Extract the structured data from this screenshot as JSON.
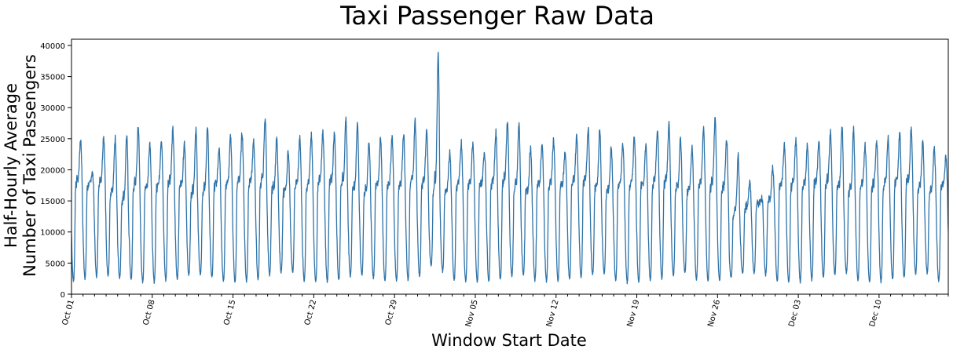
{
  "chart_data": {
    "type": "line",
    "title": "Taxi Passenger Raw Data",
    "xlabel": "Window Start Date",
    "ylabel_line1": "Half-Hourly Average",
    "ylabel_line2": "Number of Taxi Passengers",
    "x_range": [
      "2014-10-01",
      "2014-12-16"
    ],
    "ylim": [
      0,
      41000
    ],
    "x_tick_labels": [
      "Oct 01",
      "Oct 08",
      "Oct 15",
      "Oct 22",
      "Oct 29",
      "Nov 05",
      "Nov 12",
      "Nov 19",
      "Nov 26",
      "Dec 03",
      "Dec 10"
    ],
    "y_ticks": [
      0,
      5000,
      10000,
      15000,
      20000,
      25000,
      30000,
      35000,
      40000
    ],
    "series_color": "#2f73a8",
    "grid": false,
    "series": [
      {
        "x": [
          "2014-10-01",
          "2014-10-02",
          "2014-10-03",
          "2014-10-04",
          "2014-10-05",
          "2014-10-06",
          "2014-10-07",
          "2014-10-08",
          "2014-10-09",
          "2014-10-10",
          "2014-10-11",
          "2014-10-12",
          "2014-10-13",
          "2014-10-14",
          "2014-10-15",
          "2014-10-16",
          "2014-10-17",
          "2014-10-18",
          "2014-10-19",
          "2014-10-20",
          "2014-10-21",
          "2014-10-22",
          "2014-10-23",
          "2014-10-24",
          "2014-10-25",
          "2014-10-26",
          "2014-10-27",
          "2014-10-28",
          "2014-10-29",
          "2014-10-30",
          "2014-10-31",
          "2014-11-01",
          "2014-11-02",
          "2014-11-03",
          "2014-11-04",
          "2014-11-05",
          "2014-11-06",
          "2014-11-07",
          "2014-11-08",
          "2014-11-09",
          "2014-11-10",
          "2014-11-11",
          "2014-11-12",
          "2014-11-13",
          "2014-11-14",
          "2014-11-15",
          "2014-11-16",
          "2014-11-17",
          "2014-11-18",
          "2014-11-19",
          "2014-11-20",
          "2014-11-21",
          "2014-11-22",
          "2014-11-23",
          "2014-11-24",
          "2014-11-25",
          "2014-11-26",
          "2014-11-27",
          "2014-11-28",
          "2014-11-29",
          "2014-11-30",
          "2014-12-01",
          "2014-12-02",
          "2014-12-03",
          "2014-12-04",
          "2014-12-05",
          "2014-12-06",
          "2014-12-07",
          "2014-12-08",
          "2014-12-09",
          "2014-12-10",
          "2014-12-11",
          "2014-12-12",
          "2014-12-13",
          "2014-12-14",
          "2014-12-15",
          "2014-12-16"
        ],
        "min": [
          2000,
          2500,
          2800,
          3000,
          2600,
          2300,
          1800,
          1900,
          2200,
          2400,
          3000,
          3200,
          2600,
          2000,
          1800,
          2000,
          2300,
          3000,
          3500,
          3400,
          2100,
          1900,
          2000,
          2200,
          2900,
          3000,
          2500,
          2000,
          2100,
          2200,
          2800,
          4500,
          3600,
          2100,
          2000,
          1900,
          2000,
          2300,
          2800,
          3100,
          2200,
          2000,
          2000,
          2300,
          2600,
          3100,
          3300,
          2100,
          1800,
          1900,
          2200,
          2400,
          3000,
          3400,
          2300,
          2000,
          2100,
          2600,
          3200,
          3300,
          3000,
          2000,
          1800,
          1900,
          2200,
          2600,
          3100,
          3300,
          2100,
          1800,
          1900,
          2300,
          2600,
          3100,
          3400,
          2000,
          3000
        ],
        "max": [
          25000,
          19500,
          25500,
          25000,
          26000,
          27000,
          24500,
          25000,
          26500,
          24500,
          26500,
          27000,
          23500,
          25500,
          26000,
          24500,
          28500,
          25000,
          23000,
          25000,
          25500,
          26000,
          26000,
          28000,
          27500,
          24500,
          25000,
          25500,
          26000,
          28000,
          26500,
          39000,
          23000,
          24500,
          24500,
          23000,
          26000,
          28000,
          27500,
          23500,
          24000,
          25000,
          23000,
          25500,
          27000,
          26500,
          23500,
          24000,
          25500,
          24000,
          26500,
          27500,
          25000,
          23500,
          26500,
          28500,
          25000,
          22500,
          18000,
          15500,
          20500,
          24000,
          25000,
          24000,
          24500,
          26000,
          27000,
          26500,
          24000,
          24500,
          25000,
          26000,
          26500,
          24500,
          23500,
          22000,
          21000
        ],
        "midday": [
          18000,
          17500,
          18000,
          16000,
          15000,
          17500,
          17000,
          17500,
          18000,
          17500,
          16000,
          16500,
          17500,
          17500,
          18000,
          18000,
          18000,
          17000,
          16500,
          17500,
          17500,
          18000,
          18000,
          18000,
          17000,
          16500,
          17500,
          17500,
          17500,
          18000,
          18000,
          17000,
          16500,
          17500,
          17500,
          17500,
          18000,
          18000,
          17000,
          16500,
          17500,
          17500,
          17500,
          18000,
          18000,
          17000,
          16500,
          17500,
          17500,
          17500,
          18000,
          18000,
          17000,
          16500,
          17500,
          17500,
          17000,
          13000,
          14000,
          14500,
          15000,
          17500,
          17500,
          17500,
          18000,
          18000,
          17000,
          16500,
          17500,
          17500,
          17500,
          18000,
          18000,
          17000,
          16500,
          17500,
          17500
        ]
      }
    ]
  }
}
